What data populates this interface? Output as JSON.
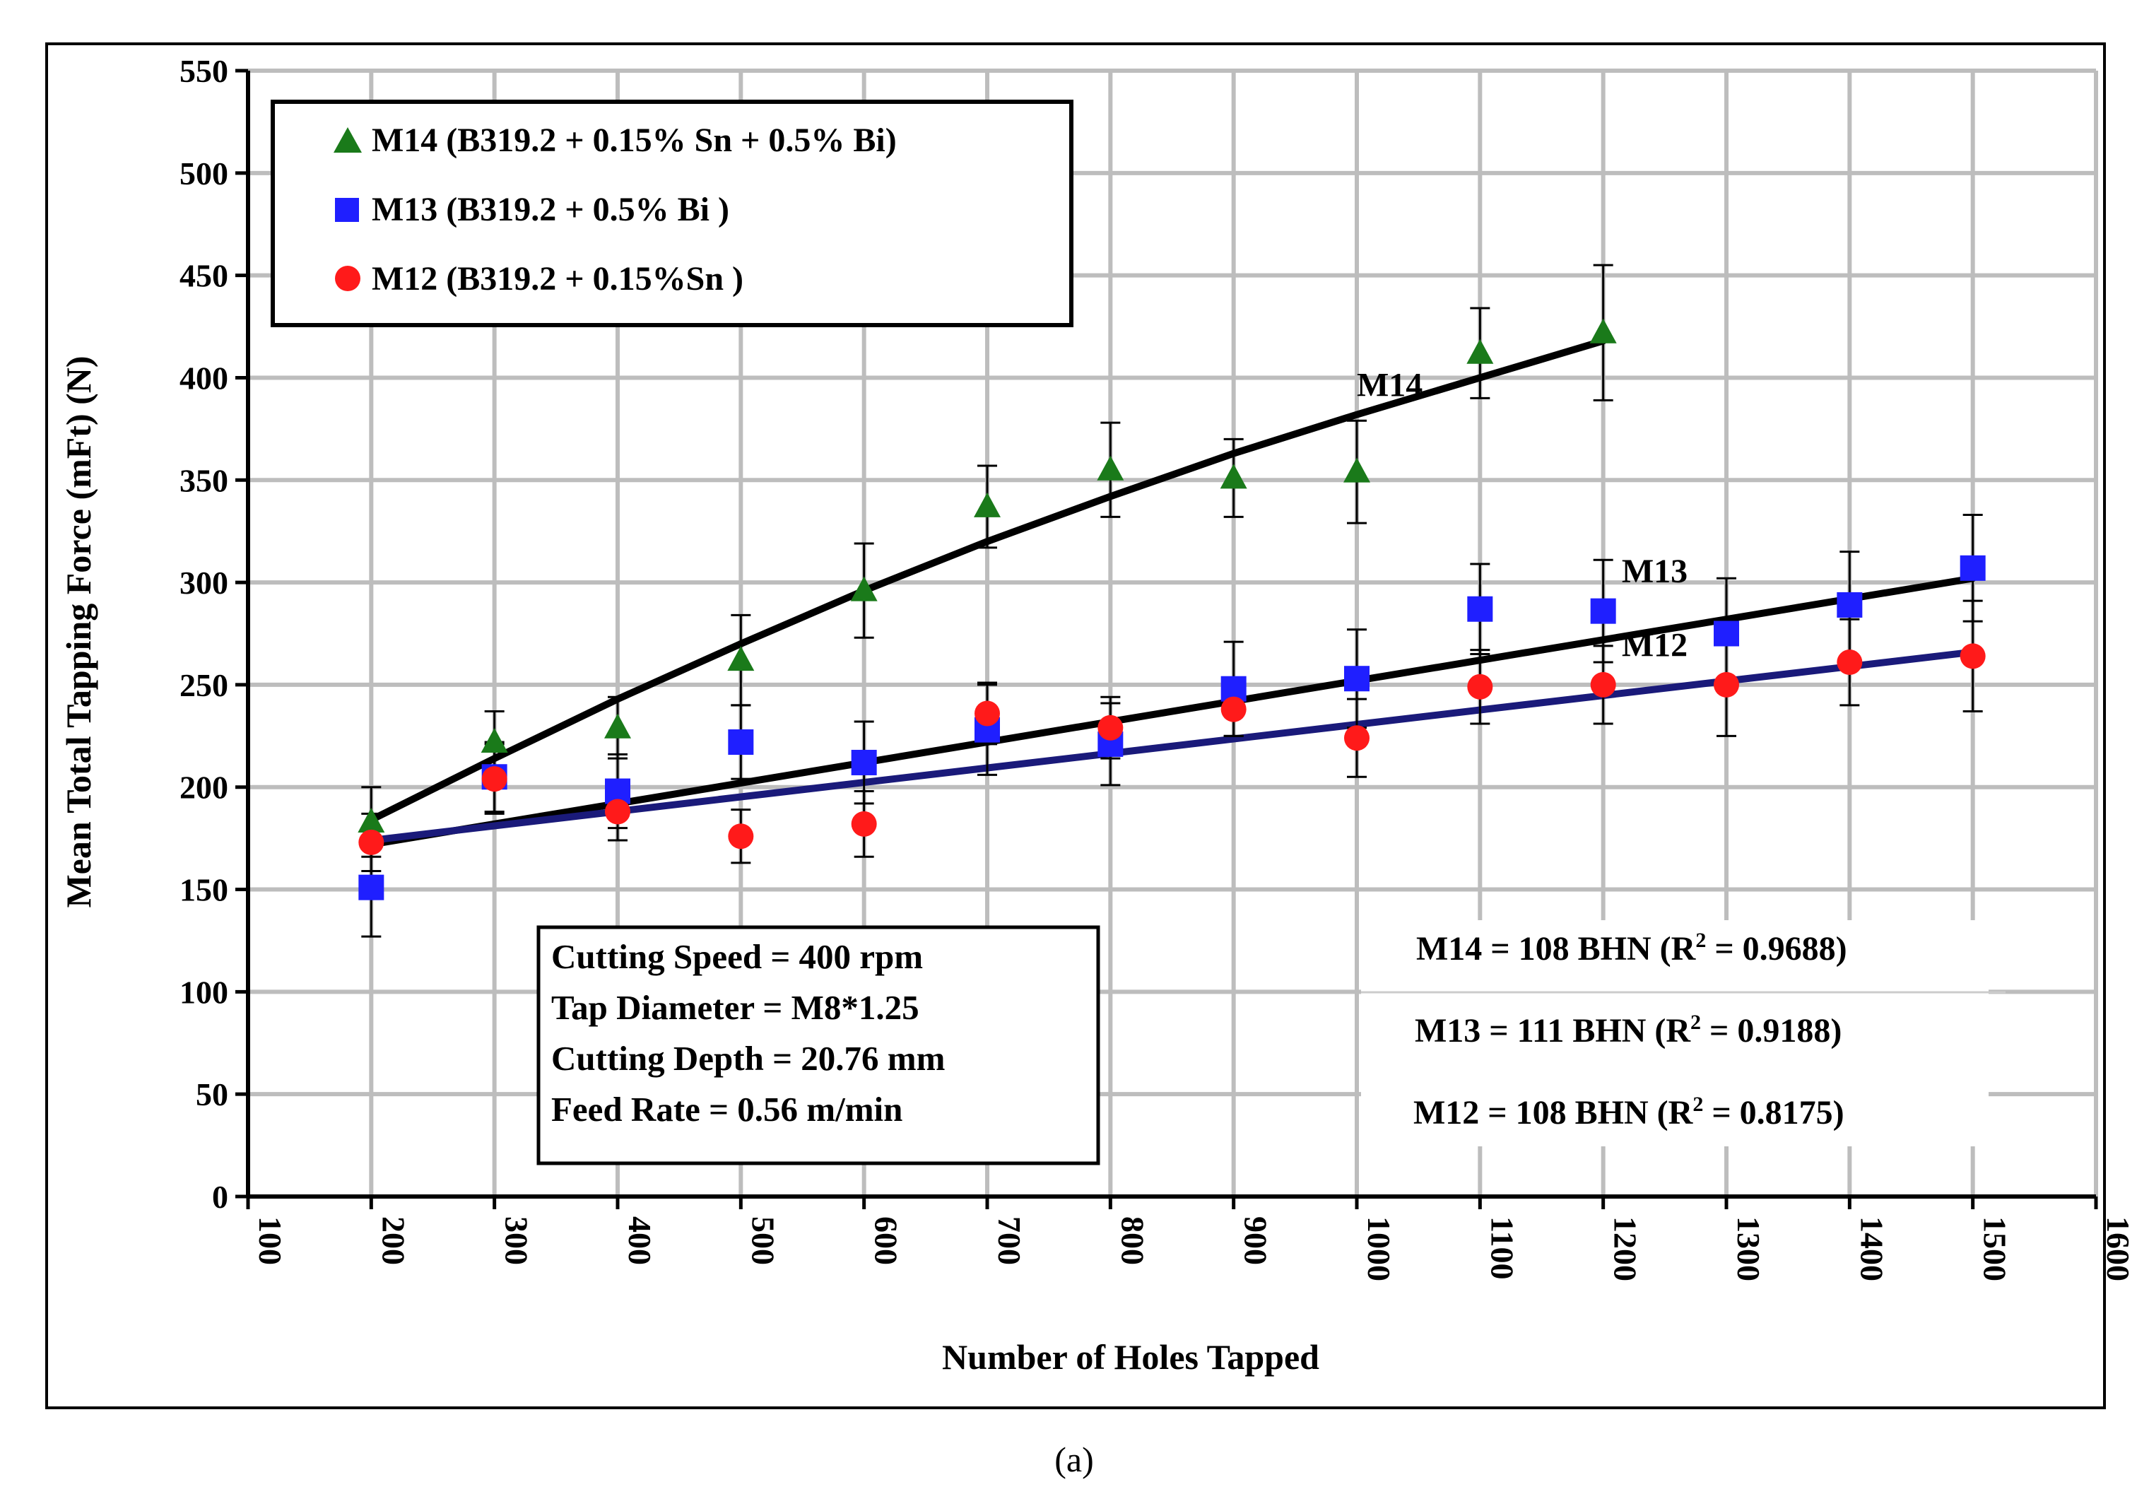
{
  "caption": "(a)",
  "chart_data": {
    "type": "scatter",
    "title": "",
    "xlabel": "Number of Holes Tapped",
    "ylabel": "Mean Total Tapping Force (mFt) (N)",
    "xlim": [
      100,
      1600
    ],
    "ylim": [
      0,
      550
    ],
    "xticks": [
      100,
      200,
      300,
      400,
      500,
      600,
      700,
      800,
      900,
      1000,
      1100,
      1200,
      1300,
      1400,
      1500,
      1600
    ],
    "yticks": [
      0,
      50,
      100,
      150,
      200,
      250,
      300,
      350,
      400,
      450,
      500,
      550
    ],
    "grid": true,
    "legend_position": "top-left",
    "series": [
      {
        "name": "M14 (B319.2 + 0.15% Sn + 0.5% Bi)",
        "marker": "triangle",
        "color": "#1a7a1a",
        "x": [
          200,
          300,
          400,
          500,
          600,
          700,
          800,
          900,
          1000,
          1100,
          1200
        ],
        "y": [
          183,
          222,
          229,
          262,
          296,
          337,
          355,
          351,
          354,
          412,
          422
        ],
        "err": [
          17,
          15,
          15,
          22,
          23,
          20,
          23,
          19,
          25,
          22,
          33
        ]
      },
      {
        "name": "M13 (B319.2 + 0.5% Bi )",
        "marker": "square",
        "color": "#1f1fff",
        "x": [
          200,
          300,
          400,
          500,
          600,
          700,
          800,
          900,
          1000,
          1100,
          1200,
          1300,
          1400,
          1500
        ],
        "y": [
          151,
          205,
          198,
          222,
          212,
          228,
          221,
          248,
          253,
          287,
          286,
          275,
          289,
          307
        ],
        "err": [
          24,
          17,
          18,
          18,
          20,
          22,
          20,
          23,
          24,
          22,
          25,
          27,
          26,
          26
        ]
      },
      {
        "name": "M12 (B319.2 + 0.15%Sn )",
        "marker": "circle",
        "color": "#ff1a1a",
        "x": [
          200,
          300,
          400,
          500,
          600,
          700,
          800,
          900,
          1000,
          1100,
          1200,
          1300,
          1400,
          1500
        ],
        "y": [
          173,
          204,
          188,
          176,
          182,
          236,
          229,
          238,
          224,
          249,
          250,
          250,
          261,
          264
        ],
        "err": [
          14,
          17,
          14,
          13,
          16,
          15,
          15,
          13,
          19,
          18,
          19,
          25,
          21,
          27
        ]
      }
    ],
    "trendlines": [
      {
        "label": "M14",
        "color": "#000000",
        "x": [
          200,
          300,
          400,
          500,
          600,
          700,
          800,
          900,
          1000,
          1100,
          1200
        ],
        "y": [
          184,
          214,
          243,
          270,
          296,
          320,
          342,
          363,
          382,
          400,
          418
        ]
      },
      {
        "label": "M13",
        "color": "#000000",
        "x": [
          200,
          1500
        ],
        "y": [
          172,
          302
        ]
      },
      {
        "label": "M12",
        "color": "#1a1a7a",
        "x": [
          200,
          1500
        ],
        "y": [
          174,
          266
        ]
      }
    ],
    "annotations": [
      {
        "text": "M14",
        "x": 1000,
        "y": 391
      },
      {
        "text": "M13",
        "x": 1215,
        "y": 300
      },
      {
        "text": "M12",
        "x": 1215,
        "y": 264
      }
    ],
    "conditions_box": [
      "Cutting Speed = 400 rpm",
      "Tap Diameter = M8*1.25",
      "Cutting Depth = 20.76 mm",
      "Feed Rate = 0.56 m/min"
    ],
    "hardness_labels": [
      {
        "pre": "M14 = 108 BHN (R",
        "sup": "2",
        "post": " = 0.9688)"
      },
      {
        "pre": "M13 = 111 BHN (R",
        "sup": "2",
        "post": " =  0.9188)"
      },
      {
        "pre": "M12 = 108 BHN (R",
        "sup": "2",
        "post": " = 0.8175)"
      }
    ]
  }
}
